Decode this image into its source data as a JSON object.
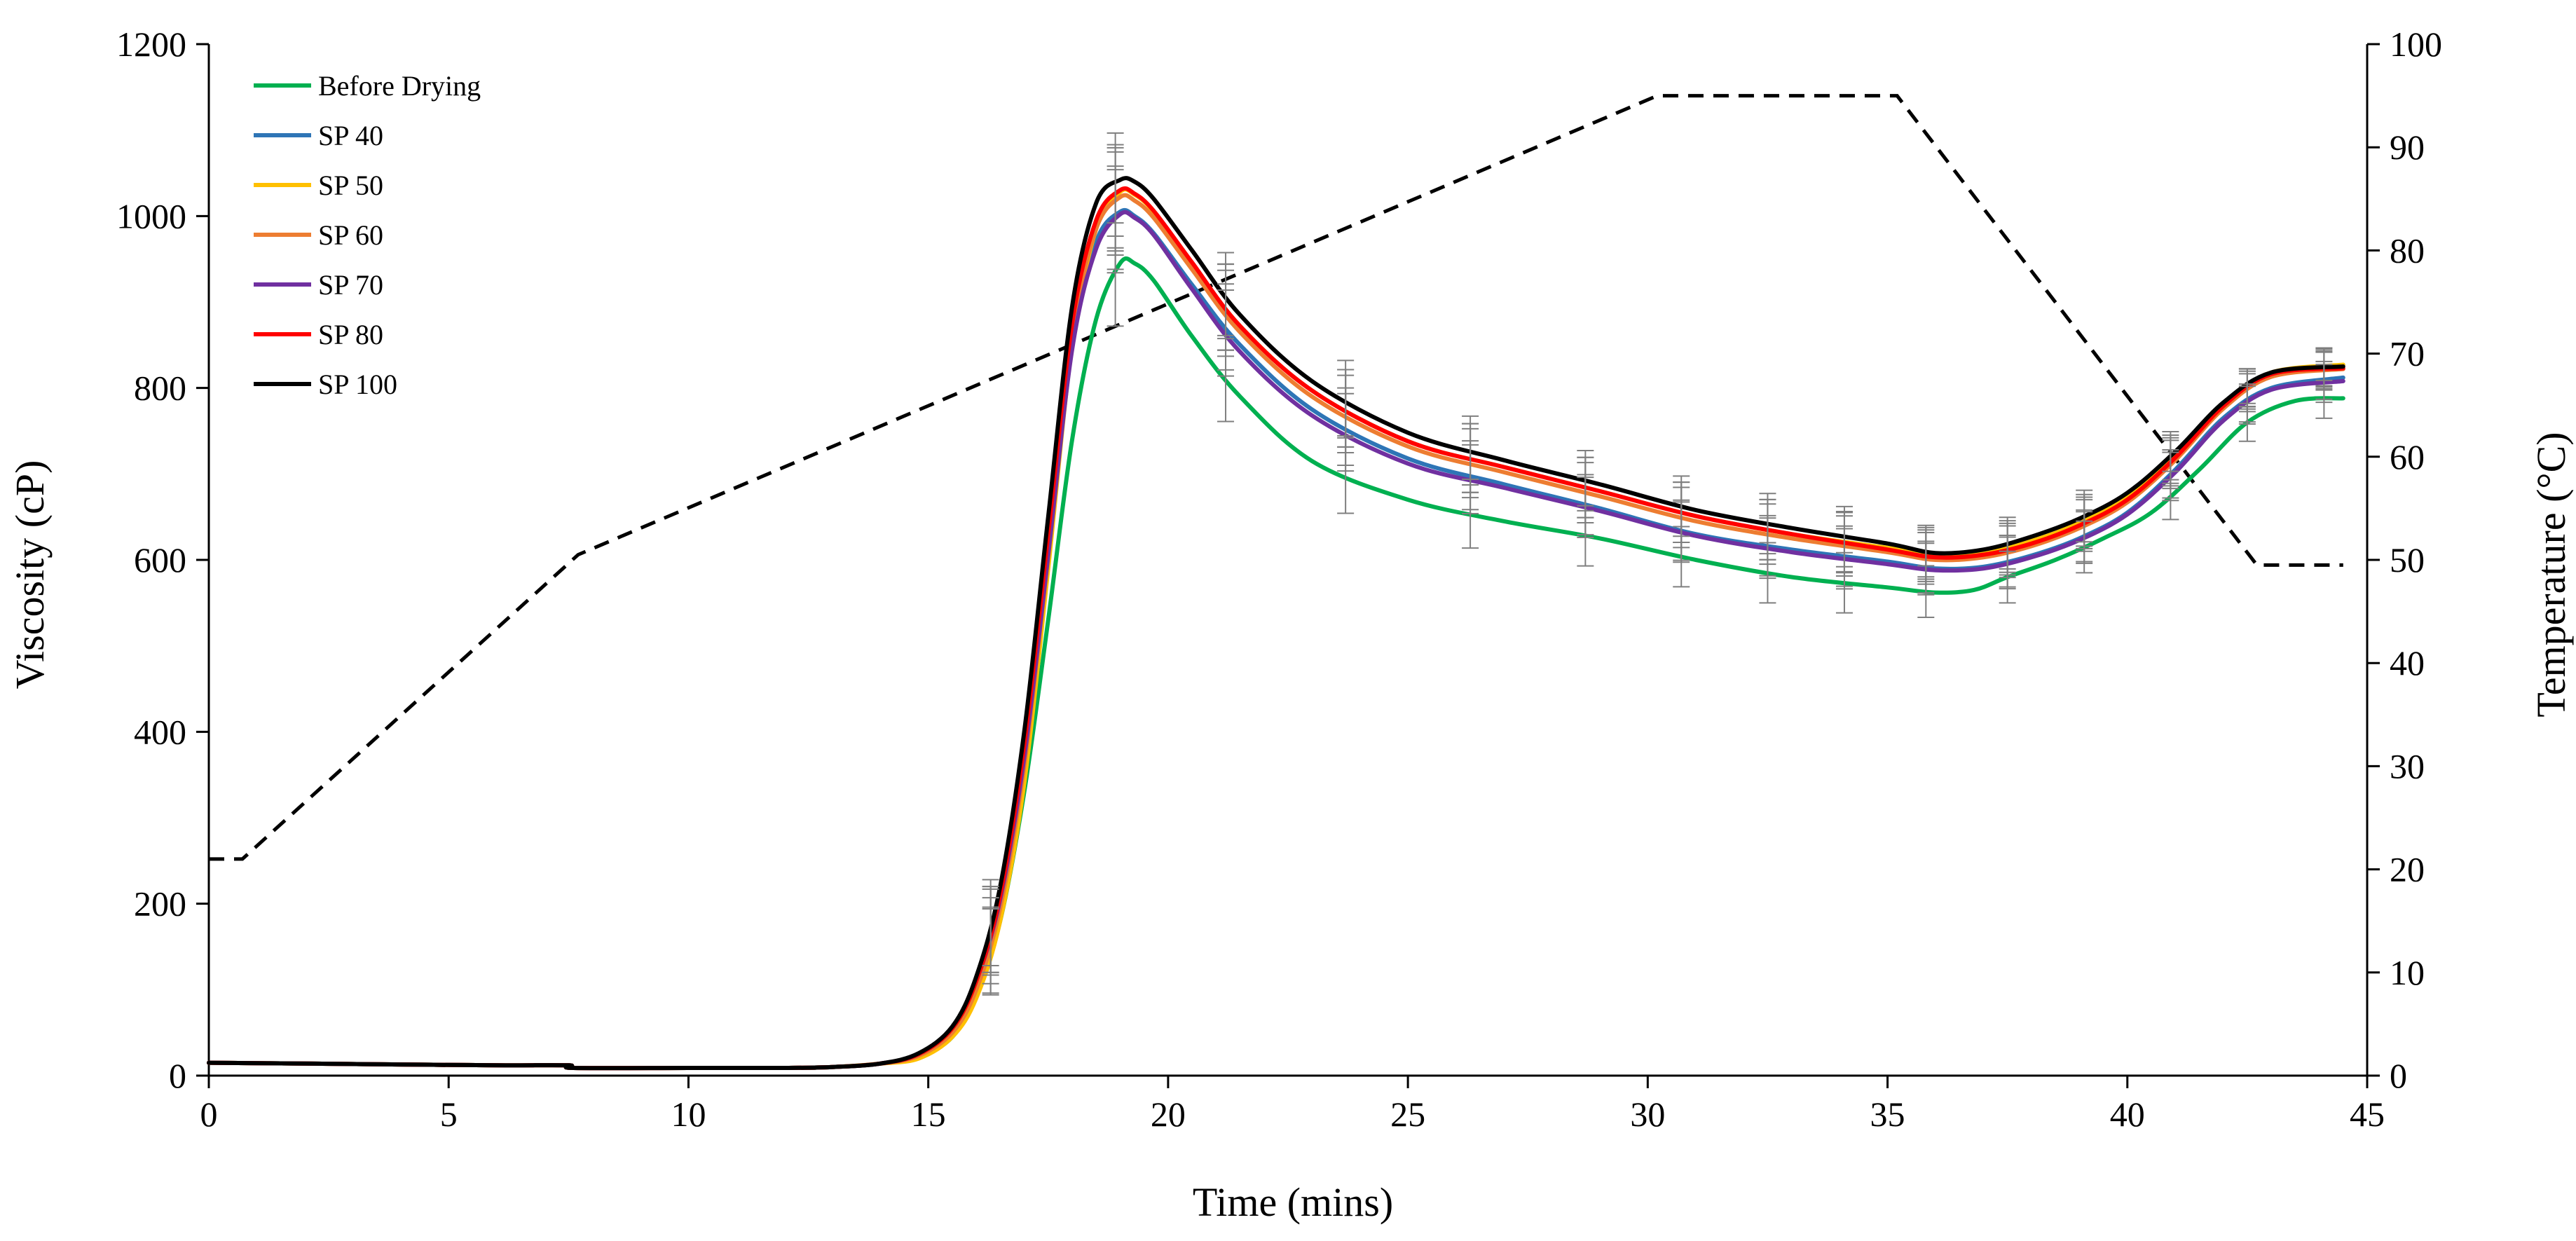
{
  "chart_data": {
    "type": "line",
    "title": "",
    "xlabel": "Time (mins)",
    "ylabel": "Viscosity (cP)",
    "y2label": "Temperature (°C)",
    "xlim": [
      0,
      45
    ],
    "ylim": [
      0,
      1200
    ],
    "y2lim": [
      0,
      100
    ],
    "xticks": [
      "0",
      "5",
      "10",
      "15",
      "20",
      "25",
      "30",
      "35",
      "40",
      "45"
    ],
    "yticks": [
      "0",
      "200",
      "400",
      "600",
      "800",
      "1000",
      "1200"
    ],
    "y2ticks": [
      "0",
      "10",
      "20",
      "30",
      "40",
      "50",
      "60",
      "70",
      "80",
      "90",
      "100"
    ],
    "grid": false,
    "legend_position": "top-left",
    "error_bar_x": [
      16.3,
      18.9,
      21.2,
      23.7,
      26.3,
      28.7,
      30.7,
      32.5,
      34.1,
      35.8,
      37.5,
      39.1,
      40.9,
      42.5,
      44.1
    ],
    "error_bar_halfwidth": [
      50,
      60,
      50,
      45,
      40,
      35,
      35,
      35,
      35,
      30,
      30,
      30,
      28,
      22,
      22
    ],
    "series": [
      {
        "name": "Before Drying",
        "color": "#00B050",
        "x": [
          0,
          2,
          4,
          6,
          7.5,
          7.6,
          10,
          12,
          13,
          14,
          14.8,
          15.5,
          16.0,
          16.5,
          17.0,
          17.5,
          18.0,
          18.5,
          19.0,
          19.3,
          19.7,
          20.5,
          21.5,
          23,
          25,
          27,
          29,
          31,
          33,
          35,
          36,
          36.8,
          37.5,
          38.5,
          39.5,
          40.5,
          41.5,
          42.5,
          43.5,
          44.5
        ],
        "values": [
          15,
          14,
          13,
          12,
          12,
          9,
          9,
          9,
          10,
          14,
          22,
          45,
          95,
          180,
          330,
          530,
          740,
          880,
          945,
          945,
          925,
          860,
          790,
          715,
          670,
          645,
          625,
          600,
          580,
          568,
          562,
          565,
          580,
          600,
          625,
          655,
          705,
          760,
          785,
          788
        ]
      },
      {
        "name": "SP 40",
        "color": "#2E75B6",
        "x": [
          0,
          2,
          4,
          6,
          7.5,
          7.6,
          10,
          12,
          13,
          14,
          14.8,
          15.5,
          16.0,
          16.5,
          17.0,
          17.5,
          18.0,
          18.5,
          19.0,
          19.3,
          19.7,
          20.5,
          21.5,
          23,
          25,
          27,
          29,
          31,
          33,
          35,
          36,
          37,
          38,
          39,
          40,
          41,
          42,
          43,
          44.5
        ],
        "values": [
          15,
          14,
          13,
          12,
          12,
          9,
          9,
          9,
          10,
          14,
          25,
          55,
          110,
          210,
          380,
          620,
          850,
          970,
          1005,
          1000,
          980,
          920,
          850,
          775,
          718,
          688,
          660,
          630,
          612,
          598,
          590,
          592,
          605,
          625,
          655,
          705,
          765,
          800,
          812
        ]
      },
      {
        "name": "SP 50",
        "color": "#FFC000",
        "x": [
          0,
          2,
          4,
          6,
          7.5,
          7.6,
          10,
          12,
          13,
          14,
          14.8,
          15.5,
          16.0,
          16.5,
          17.0,
          17.5,
          18.0,
          18.5,
          19.0,
          19.3,
          19.7,
          20.5,
          21.5,
          23,
          25,
          27,
          29,
          31,
          33,
          35,
          36,
          37,
          38,
          39,
          40,
          41,
          42,
          43,
          44.5
        ],
        "values": [
          15,
          14,
          13,
          12,
          12,
          9,
          9,
          9,
          10,
          14,
          20,
          45,
          90,
          180,
          340,
          590,
          850,
          985,
          1028,
          1025,
          1005,
          945,
          872,
          797,
          738,
          708,
          680,
          651,
          630,
          614,
          606,
          609,
          622,
          643,
          673,
          722,
          782,
          818,
          827
        ]
      },
      {
        "name": "SP 60",
        "color": "#ED7D31",
        "x": [
          0,
          2,
          4,
          6,
          7.5,
          7.6,
          10,
          12,
          13,
          14,
          14.8,
          15.5,
          16.0,
          16.5,
          17.0,
          17.5,
          18.0,
          18.5,
          19.0,
          19.3,
          19.7,
          20.5,
          21.5,
          23,
          25,
          27,
          29,
          31,
          33,
          35,
          36,
          37,
          38,
          39,
          40,
          41,
          42,
          43,
          44.5
        ],
        "values": [
          15,
          14,
          13,
          12,
          12,
          9,
          9,
          9,
          10,
          14,
          23,
          50,
          100,
          195,
          360,
          605,
          860,
          985,
          1022,
          1018,
          998,
          938,
          865,
          790,
          732,
          702,
          674,
          645,
          625,
          609,
          600,
          603,
          616,
          637,
          667,
          716,
          776,
          813,
          822
        ]
      },
      {
        "name": "SP 70",
        "color": "#7030A0",
        "x": [
          0,
          2,
          4,
          6,
          7.5,
          7.6,
          10,
          12,
          13,
          14,
          14.8,
          15.5,
          16.0,
          16.5,
          17.0,
          17.5,
          18.0,
          18.5,
          19.0,
          19.3,
          19.7,
          20.5,
          21.5,
          23,
          25,
          27,
          29,
          31,
          33,
          35,
          36,
          37,
          38,
          39,
          40,
          41,
          42,
          43,
          44.5
        ],
        "values": [
          15,
          14,
          13,
          12,
          12,
          9,
          9,
          9,
          10,
          14,
          25,
          55,
          110,
          205,
          370,
          605,
          845,
          962,
          1002,
          998,
          978,
          915,
          842,
          768,
          712,
          684,
          657,
          628,
          609,
          595,
          588,
          590,
          603,
          623,
          653,
          702,
          762,
          798,
          808
        ]
      },
      {
        "name": "SP 80",
        "color": "#FF0000",
        "x": [
          0,
          2,
          4,
          6,
          7.5,
          7.6,
          10,
          12,
          13,
          14,
          14.8,
          15.5,
          16.0,
          16.5,
          17.0,
          17.5,
          18.0,
          18.5,
          19.0,
          19.3,
          19.7,
          20.5,
          21.5,
          23,
          25,
          27,
          29,
          31,
          33,
          35,
          36,
          37,
          38,
          39,
          40,
          41,
          42,
          43,
          44.5
        ],
        "values": [
          15,
          14,
          13,
          12,
          12,
          9,
          9,
          9,
          10,
          14,
          25,
          55,
          110,
          210,
          385,
          630,
          875,
          995,
          1030,
          1026,
          1006,
          946,
          872,
          797,
          738,
          708,
          680,
          651,
          630,
          612,
          603,
          606,
          619,
          640,
          670,
          719,
          779,
          816,
          823
        ]
      },
      {
        "name": "SP 100",
        "color": "#000000",
        "x": [
          0,
          2,
          4,
          6,
          7.5,
          7.6,
          10,
          12,
          13,
          14,
          14.8,
          15.5,
          16.0,
          16.5,
          17.0,
          17.5,
          18.0,
          18.5,
          19.0,
          19.3,
          19.7,
          20.5,
          21.5,
          23,
          25,
          27,
          29,
          31,
          33,
          35,
          36,
          37,
          38,
          39,
          40,
          41,
          42,
          43,
          44.5
        ],
        "values": [
          15,
          14,
          13,
          12,
          12,
          9,
          9,
          9,
          10,
          14,
          26,
          57,
          115,
          220,
          400,
          650,
          895,
          1015,
          1042,
          1040,
          1020,
          960,
          885,
          808,
          748,
          716,
          688,
          658,
          637,
          619,
          608,
          612,
          627,
          648,
          678,
          726,
          783,
          818,
          825
        ]
      },
      {
        "name": "Temperature",
        "color": "#000000",
        "axis": "right",
        "dashed": true,
        "show_in_legend": false,
        "x": [
          0,
          0.7,
          7.7,
          30.2,
          35.2,
          42.7,
          44.5
        ],
        "values": [
          21,
          21,
          50.5,
          95,
          95,
          49.5,
          49.5
        ]
      }
    ]
  }
}
